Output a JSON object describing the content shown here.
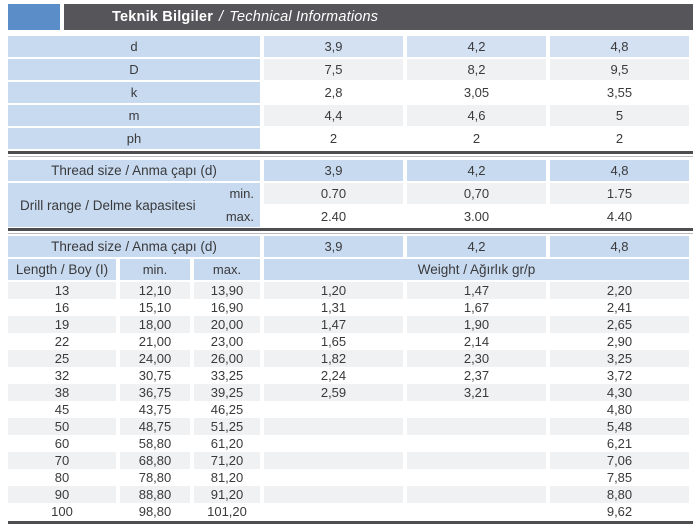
{
  "colors": {
    "accent_blue": "#5b8dc8",
    "bar_gray": "#56565a",
    "cell_blue": "#c8daef",
    "cell_blue_light": "#d3e1f3",
    "row_gray": "#f0f1f2",
    "rule_dark": "#4e4e51",
    "text": "#3a3a3c"
  },
  "header": {
    "title_tr": "Teknik Bilgiler",
    "title_sep": "/",
    "title_en": "Technical Informations"
  },
  "dim_table": {
    "rows": [
      {
        "label": "d",
        "values": [
          "3,9",
          "4,2",
          "4,8"
        ]
      },
      {
        "label": "D",
        "values": [
          "7,5",
          "8,2",
          "9,5"
        ]
      },
      {
        "label": "k",
        "values": [
          "2,8",
          "3,05",
          "3,55"
        ]
      },
      {
        "label": "m",
        "values": [
          "4,4",
          "4,6",
          "5"
        ]
      },
      {
        "label": "ph",
        "values": [
          "2",
          "2",
          "2"
        ]
      }
    ]
  },
  "drill_table": {
    "header_label": "Thread size / Anma çapı (d)",
    "sizes": [
      "3,9",
      "4,2",
      "4,8"
    ],
    "range_label": "Drill range / Delme kapasitesi",
    "min_label": "min.",
    "max_label": "max.",
    "min_values": [
      "0.70",
      "0,70",
      "1.75"
    ],
    "max_values": [
      "2.40",
      "3.00",
      "4.40"
    ]
  },
  "length_table": {
    "header_label": "Thread size / Anma çapı (d)",
    "sizes": [
      "3,9",
      "4,2",
      "4,8"
    ],
    "length_label": "Length / Boy (I)",
    "min_label": "min.",
    "max_label": "max.",
    "weight_label": "Weight / Ağırlık gr/p",
    "rows": [
      [
        "13",
        "12,10",
        "13,90",
        "1,20",
        "1,47",
        "2,20"
      ],
      [
        "16",
        "15,10",
        "16,90",
        "1,31",
        "1,67",
        "2,41"
      ],
      [
        "19",
        "18,00",
        "20,00",
        "1,47",
        "1,90",
        "2,65"
      ],
      [
        "22",
        "21,00",
        "23,00",
        "1,65",
        "2,14",
        "2,90"
      ],
      [
        "25",
        "24,00",
        "26,00",
        "1,82",
        "2,30",
        "3,25"
      ],
      [
        "32",
        "30,75",
        "33,25",
        "2,24",
        "2,37",
        "3,72"
      ],
      [
        "38",
        "36,75",
        "39,25",
        "2,59",
        "3,21",
        "4,30"
      ],
      [
        "45",
        "43,75",
        "46,25",
        "",
        "",
        "4,80"
      ],
      [
        "50",
        "48,75",
        "51,25",
        "",
        "",
        "5,48"
      ],
      [
        "60",
        "58,80",
        "61,20",
        "",
        "",
        "6,21"
      ],
      [
        "70",
        "68,80",
        "71,20",
        "",
        "",
        "7,06"
      ],
      [
        "80",
        "78,80",
        "81,20",
        "",
        "",
        "7,85"
      ],
      [
        "90",
        "88,80",
        "91,20",
        "",
        "",
        "8,80"
      ],
      [
        "100",
        "98,80",
        "101,20",
        "",
        "",
        "9,62"
      ]
    ]
  }
}
